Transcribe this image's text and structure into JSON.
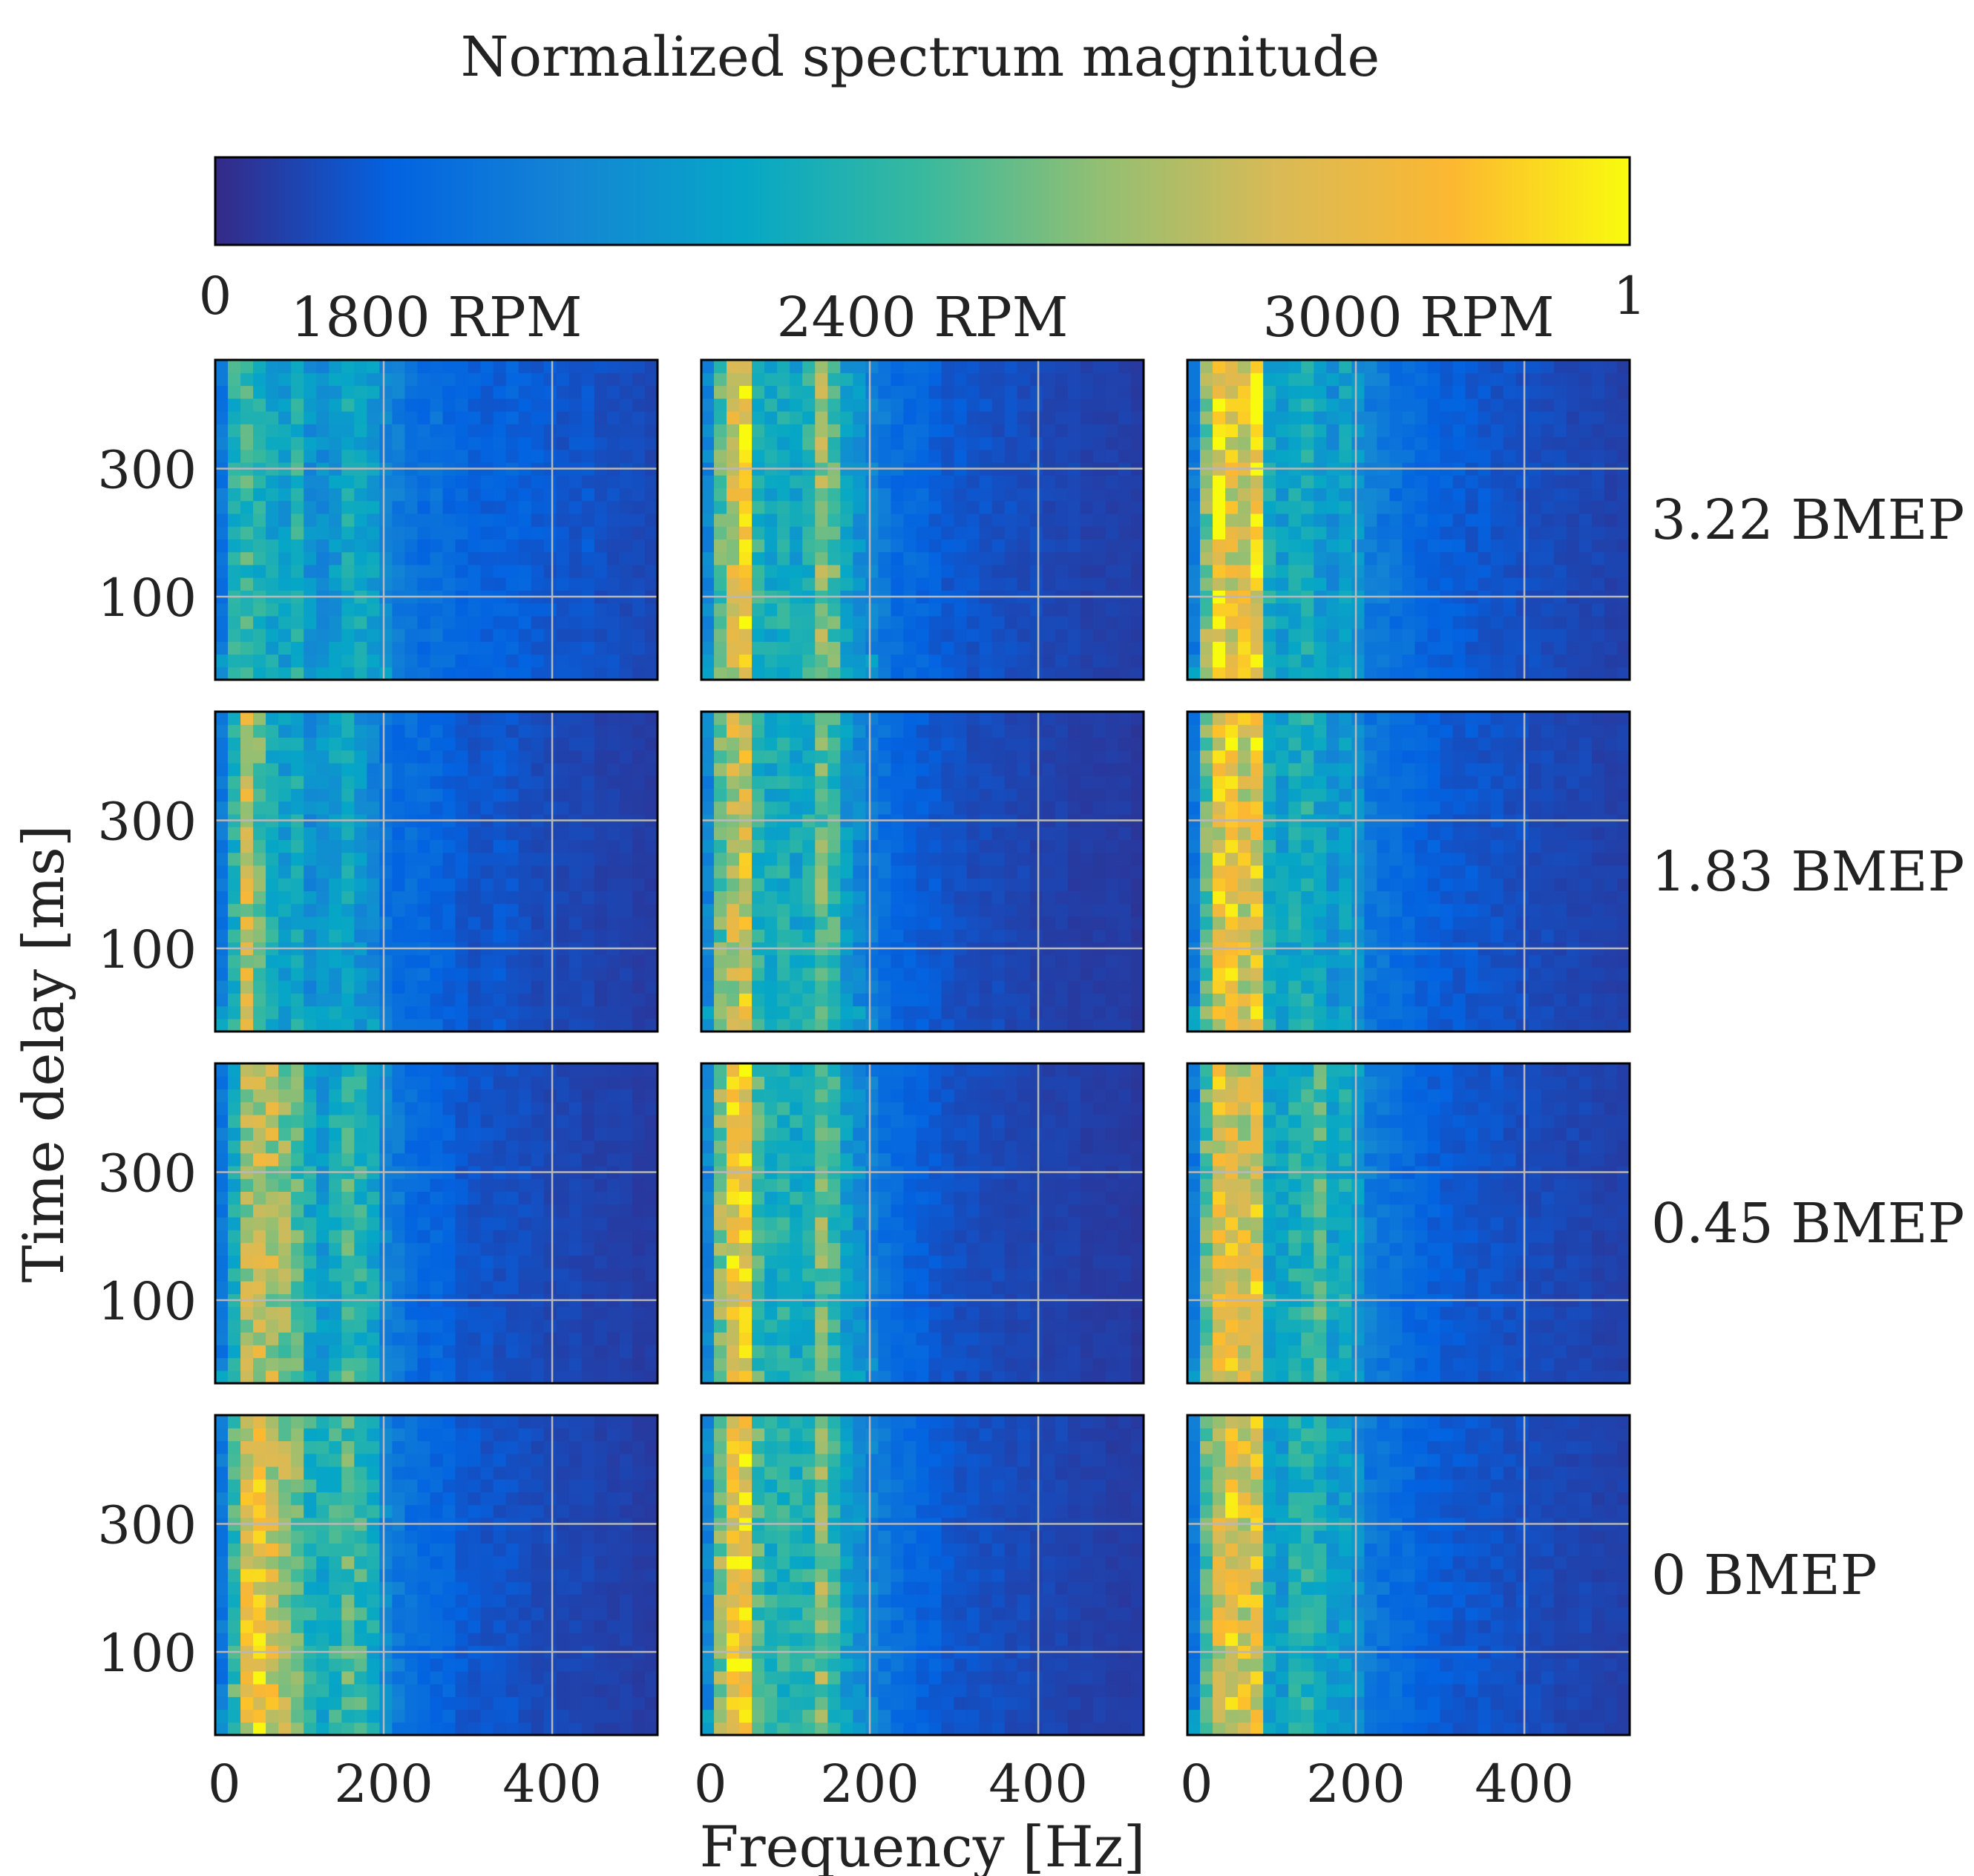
{
  "chart_data": {
    "type": "heatmap",
    "title": "Normalized spectrum magnitude",
    "colorbar": {
      "min": 0,
      "max": 1,
      "min_label": "0",
      "max_label": "1",
      "colors": [
        "#352a87",
        "#0363e1",
        "#1485d4",
        "#06a7c6",
        "#38b99e",
        "#92bf73",
        "#d9ba56",
        "#fcb831",
        "#f9fb0e"
      ]
    },
    "xlabel": "Frequency [Hz]",
    "ylabel": "Time delay [ms]",
    "xlim": [
      0,
      525
    ],
    "ylim": [
      -30,
      470
    ],
    "xticks": [
      0,
      200,
      400
    ],
    "xtick_labels": [
      "0",
      "200",
      "400"
    ],
    "yticks": [
      100,
      300
    ],
    "ytick_labels": [
      "100",
      "300"
    ],
    "grid": true,
    "columns": [
      "1800 RPM",
      "2400 RPM",
      "3000 RPM"
    ],
    "rows": [
      "3.22 BMEP",
      "1.83 BMEP",
      "0.45 BMEP",
      "0 BMEP"
    ],
    "bins": {
      "n_freq": 35,
      "n_time": 25,
      "freq_bin_hz": 15,
      "time_bin_ms": 20
    },
    "frequency_profiles": [
      [
        [
          0.2,
          0.45,
          0.48,
          0.42,
          0.38,
          0.35,
          0.45,
          0.3,
          0.28,
          0.32,
          0.4,
          0.38,
          0.34,
          0.25,
          0.22,
          0.18,
          0.16,
          0.18,
          0.15,
          0.14,
          0.13,
          0.12,
          0.12,
          0.13,
          0.12,
          0.11,
          0.1,
          0.09,
          0.09,
          0.1,
          0.08,
          0.08,
          0.07,
          0.07,
          0.06
        ],
        [
          0.2,
          0.45,
          0.7,
          0.55,
          0.42,
          0.35,
          0.4,
          0.28,
          0.3,
          0.35,
          0.38,
          0.3,
          0.25,
          0.18,
          0.15,
          0.16,
          0.15,
          0.14,
          0.12,
          0.1,
          0.09,
          0.09,
          0.1,
          0.09,
          0.08,
          0.07,
          0.07,
          0.06,
          0.06,
          0.06,
          0.05,
          0.05,
          0.05,
          0.04,
          0.04
        ],
        [
          0.2,
          0.4,
          0.65,
          0.72,
          0.68,
          0.6,
          0.52,
          0.4,
          0.32,
          0.4,
          0.5,
          0.45,
          0.38,
          0.25,
          0.2,
          0.16,
          0.14,
          0.14,
          0.12,
          0.1,
          0.09,
          0.09,
          0.08,
          0.08,
          0.08,
          0.07,
          0.06,
          0.06,
          0.06,
          0.05,
          0.05,
          0.05,
          0.05,
          0.04,
          0.04
        ],
        [
          0.2,
          0.5,
          0.78,
          0.82,
          0.74,
          0.66,
          0.58,
          0.45,
          0.4,
          0.46,
          0.52,
          0.48,
          0.4,
          0.26,
          0.2,
          0.17,
          0.15,
          0.14,
          0.13,
          0.11,
          0.1,
          0.09,
          0.09,
          0.09,
          0.08,
          0.07,
          0.07,
          0.06,
          0.06,
          0.06,
          0.05,
          0.05,
          0.05,
          0.04,
          0.04
        ]
      ],
      [
        [
          0.25,
          0.55,
          0.75,
          0.85,
          0.45,
          0.4,
          0.42,
          0.38,
          0.45,
          0.62,
          0.55,
          0.35,
          0.3,
          0.24,
          0.2,
          0.16,
          0.15,
          0.14,
          0.12,
          0.1,
          0.1,
          0.09,
          0.09,
          0.08,
          0.08,
          0.07,
          0.07,
          0.06,
          0.06,
          0.06,
          0.05,
          0.05,
          0.05,
          0.05,
          0.04
        ],
        [
          0.25,
          0.55,
          0.7,
          0.78,
          0.45,
          0.4,
          0.42,
          0.38,
          0.42,
          0.55,
          0.48,
          0.32,
          0.26,
          0.2,
          0.17,
          0.14,
          0.12,
          0.11,
          0.1,
          0.09,
          0.08,
          0.07,
          0.07,
          0.07,
          0.06,
          0.06,
          0.05,
          0.05,
          0.05,
          0.04,
          0.04,
          0.04,
          0.04,
          0.04,
          0.03
        ],
        [
          0.25,
          0.6,
          0.85,
          0.86,
          0.5,
          0.42,
          0.44,
          0.4,
          0.42,
          0.58,
          0.5,
          0.34,
          0.28,
          0.22,
          0.18,
          0.15,
          0.13,
          0.12,
          0.1,
          0.09,
          0.08,
          0.08,
          0.07,
          0.07,
          0.06,
          0.06,
          0.06,
          0.05,
          0.05,
          0.05,
          0.04,
          0.04,
          0.04,
          0.04,
          0.03
        ],
        [
          0.25,
          0.6,
          0.86,
          0.86,
          0.52,
          0.44,
          0.46,
          0.42,
          0.45,
          0.6,
          0.48,
          0.35,
          0.3,
          0.24,
          0.2,
          0.17,
          0.15,
          0.13,
          0.12,
          0.1,
          0.09,
          0.09,
          0.08,
          0.08,
          0.07,
          0.07,
          0.06,
          0.06,
          0.06,
          0.05,
          0.05,
          0.05,
          0.04,
          0.04,
          0.04
        ]
      ],
      [
        [
          0.2,
          0.6,
          0.9,
          0.8,
          0.78,
          0.88,
          0.4,
          0.35,
          0.38,
          0.4,
          0.34,
          0.3,
          0.36,
          0.3,
          0.22,
          0.2,
          0.18,
          0.16,
          0.14,
          0.13,
          0.12,
          0.11,
          0.1,
          0.1,
          0.09,
          0.09,
          0.08,
          0.08,
          0.07,
          0.07,
          0.06,
          0.06,
          0.06,
          0.05,
          0.05
        ],
        [
          0.2,
          0.55,
          0.8,
          0.82,
          0.76,
          0.84,
          0.4,
          0.34,
          0.4,
          0.42,
          0.36,
          0.3,
          0.34,
          0.28,
          0.2,
          0.18,
          0.16,
          0.15,
          0.13,
          0.12,
          0.11,
          0.1,
          0.1,
          0.09,
          0.09,
          0.08,
          0.08,
          0.07,
          0.07,
          0.06,
          0.06,
          0.06,
          0.05,
          0.05,
          0.05
        ],
        [
          0.2,
          0.55,
          0.78,
          0.8,
          0.74,
          0.8,
          0.38,
          0.36,
          0.42,
          0.44,
          0.5,
          0.36,
          0.4,
          0.32,
          0.22,
          0.19,
          0.17,
          0.15,
          0.13,
          0.12,
          0.11,
          0.1,
          0.1,
          0.09,
          0.09,
          0.08,
          0.08,
          0.07,
          0.07,
          0.06,
          0.06,
          0.06,
          0.05,
          0.05,
          0.05
        ],
        [
          0.2,
          0.55,
          0.75,
          0.82,
          0.78,
          0.78,
          0.36,
          0.34,
          0.42,
          0.44,
          0.4,
          0.32,
          0.34,
          0.28,
          0.2,
          0.18,
          0.16,
          0.15,
          0.13,
          0.12,
          0.11,
          0.1,
          0.1,
          0.09,
          0.09,
          0.08,
          0.08,
          0.07,
          0.07,
          0.06,
          0.06,
          0.06,
          0.05,
          0.05,
          0.05
        ]
      ]
    ]
  }
}
